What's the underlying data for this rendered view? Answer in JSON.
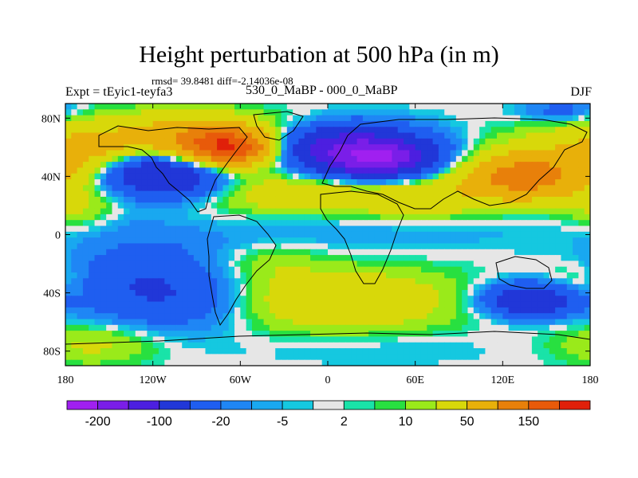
{
  "chart_data": {
    "type": "heatmap",
    "title": "Height perturbation at 500 hPa (in m)",
    "stats": "rmsd= 39.8481 diff=-2.14036e-08",
    "left_label": "Expt = tEyic1-teyfa3",
    "center_label": "530_0_MaBP - 000_0_MaBP",
    "right_label": "DJF",
    "xlim": [
      -180,
      180
    ],
    "ylim": [
      -90,
      90
    ],
    "x_ticks": [
      {
        "value": -180,
        "label": "180"
      },
      {
        "value": -120,
        "label": "120W"
      },
      {
        "value": -60,
        "label": "60W"
      },
      {
        "value": 0,
        "label": "0"
      },
      {
        "value": 60,
        "label": "60E"
      },
      {
        "value": 120,
        "label": "120E"
      },
      {
        "value": 180,
        "label": "180"
      }
    ],
    "y_ticks": [
      {
        "value": 80,
        "label": "80N"
      },
      {
        "value": 40,
        "label": "40N"
      },
      {
        "value": 0,
        "label": "0"
      },
      {
        "value": -40,
        "label": "40S"
      },
      {
        "value": -80,
        "label": "80S"
      }
    ],
    "colorbar": {
      "colors": [
        "#a020f0",
        "#7a1ee8",
        "#4c1fe0",
        "#2137d8",
        "#1f5ef0",
        "#1f86f5",
        "#19a8f0",
        "#15c8e0",
        "#e6e6e6",
        "#19e3a8",
        "#28e040",
        "#9aea1a",
        "#d8d80a",
        "#e8b00a",
        "#e8800a",
        "#e85a0a",
        "#e0200a"
      ],
      "labels": [
        "-200",
        "-100",
        "-20",
        "-5",
        "2",
        "10",
        "50",
        "150"
      ]
    },
    "fields": [
      {
        "lon": -160,
        "lat": 55,
        "value": 80,
        "sx": 28,
        "sy": 14
      },
      {
        "lon": -140,
        "lat": 10,
        "value": -6,
        "sx": 22,
        "sy": 10
      },
      {
        "lon": -130,
        "lat": 45,
        "value": -90,
        "sx": 28,
        "sy": 12
      },
      {
        "lon": -100,
        "lat": 40,
        "value": -60,
        "sx": 25,
        "sy": 10
      },
      {
        "lon": -95,
        "lat": 65,
        "value": 90,
        "sx": 32,
        "sy": 12
      },
      {
        "lon": -65,
        "lat": 60,
        "value": 170,
        "sx": 22,
        "sy": 9
      },
      {
        "lon": -20,
        "lat": 78,
        "value": 8,
        "sx": 20,
        "sy": 7
      },
      {
        "lon": 10,
        "lat": 60,
        "value": -110,
        "sx": 38,
        "sy": 11
      },
      {
        "lon": 35,
        "lat": 52,
        "value": -150,
        "sx": 25,
        "sy": 9
      },
      {
        "lon": -30,
        "lat": 28,
        "value": 35,
        "sx": 40,
        "sy": 10
      },
      {
        "lon": 60,
        "lat": 25,
        "value": 45,
        "sx": 38,
        "sy": 10
      },
      {
        "lon": 135,
        "lat": 40,
        "value": 130,
        "sx": 28,
        "sy": 11
      },
      {
        "lon": 145,
        "lat": 65,
        "value": 12,
        "sx": 30,
        "sy": 9
      },
      {
        "lon": 160,
        "lat": 85,
        "value": -30,
        "sx": 18,
        "sy": 5
      },
      {
        "lon": -170,
        "lat": 20,
        "value": 25,
        "sx": 20,
        "sy": 10
      },
      {
        "lon": 40,
        "lat": 5,
        "value": -10,
        "sx": 80,
        "sy": 12
      },
      {
        "lon": -100,
        "lat": -5,
        "value": -8,
        "sx": 50,
        "sy": 10
      },
      {
        "lon": -130,
        "lat": -35,
        "value": -45,
        "sx": 35,
        "sy": 18
      },
      {
        "lon": -90,
        "lat": -45,
        "value": -25,
        "sx": 30,
        "sy": 15
      },
      {
        "lon": -40,
        "lat": -18,
        "value": 15,
        "sx": 22,
        "sy": 9
      },
      {
        "lon": 10,
        "lat": -45,
        "value": 45,
        "sx": 55,
        "sy": 15
      },
      {
        "lon": 140,
        "lat": -45,
        "value": -100,
        "sx": 22,
        "sy": 8
      },
      {
        "lon": 170,
        "lat": -35,
        "value": 20,
        "sx": 18,
        "sy": 10
      },
      {
        "lon": -160,
        "lat": -75,
        "value": 25,
        "sx": 30,
        "sy": 10
      },
      {
        "lon": 30,
        "lat": -78,
        "value": -7,
        "sx": 60,
        "sy": 8
      }
    ]
  }
}
